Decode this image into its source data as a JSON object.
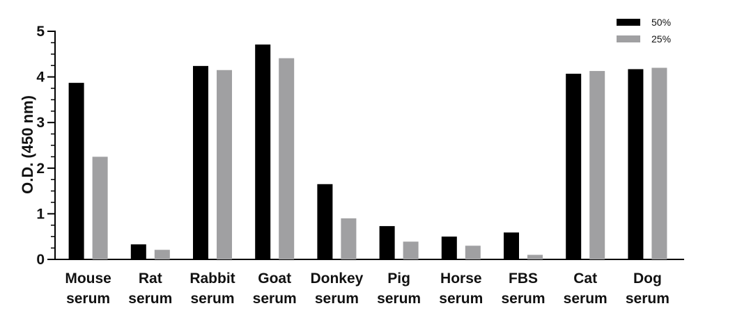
{
  "chart_data": {
    "type": "bar",
    "title": "",
    "xlabel": "",
    "ylabel": "O.D. (450 nm)",
    "ylim": [
      0,
      5
    ],
    "yticks": [
      "0",
      "1",
      "2",
      "3",
      "4",
      "5"
    ],
    "grid": false,
    "legend_position": "top-right",
    "categories": [
      [
        "Mouse",
        "serum"
      ],
      [
        "Rat",
        "serum"
      ],
      [
        "Rabbit",
        "serum"
      ],
      [
        "Goat",
        "serum"
      ],
      [
        "Donkey",
        "serum"
      ],
      [
        "Pig",
        "serum"
      ],
      [
        "Horse",
        "serum"
      ],
      [
        "FBS",
        "serum"
      ],
      [
        "Cat",
        "serum"
      ],
      [
        "Dog",
        "serum"
      ]
    ],
    "series": [
      {
        "name": "50%",
        "color": "#000000",
        "values": [
          3.87,
          0.33,
          4.24,
          4.71,
          1.65,
          0.73,
          0.5,
          0.59,
          4.07,
          4.17
        ]
      },
      {
        "name": "25%",
        "color": "#a0a0a2",
        "values": [
          2.25,
          0.21,
          4.15,
          4.41,
          0.9,
          0.39,
          0.3,
          0.1,
          4.13,
          4.2
        ]
      }
    ]
  }
}
